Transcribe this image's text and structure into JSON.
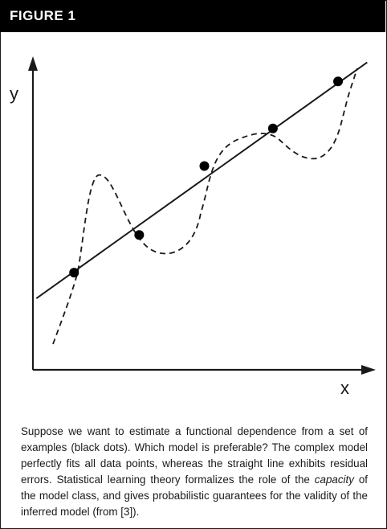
{
  "figure": {
    "label": "FIGURE 1"
  },
  "chart_data": {
    "type": "line",
    "xlabel": "x",
    "ylabel": "y",
    "axis_ticks": false,
    "points": [
      {
        "x": 0.12,
        "y": 0.31
      },
      {
        "x": 0.31,
        "y": 0.43
      },
      {
        "x": 0.5,
        "y": 0.65
      },
      {
        "x": 0.7,
        "y": 0.77
      },
      {
        "x": 0.89,
        "y": 0.92
      }
    ],
    "fit_line": {
      "style": "solid",
      "intercept": 0.22,
      "slope": 0.78
    },
    "complex_curve": {
      "style": "dashed",
      "passes_through_all_points": true
    }
  },
  "caption": {
    "part1": "Suppose we want to estimate a functional dependence from a set of examples (black dots). Which model is preferable? The complex model perfectly fits all data points, whereas the straight line exhibits residual errors. Statistical learning theory formalizes the role of the ",
    "emphasis": "capacity",
    "part2": " of the model class, and gives probabilistic guarantees for the validity of the inferred model (from [3])."
  }
}
